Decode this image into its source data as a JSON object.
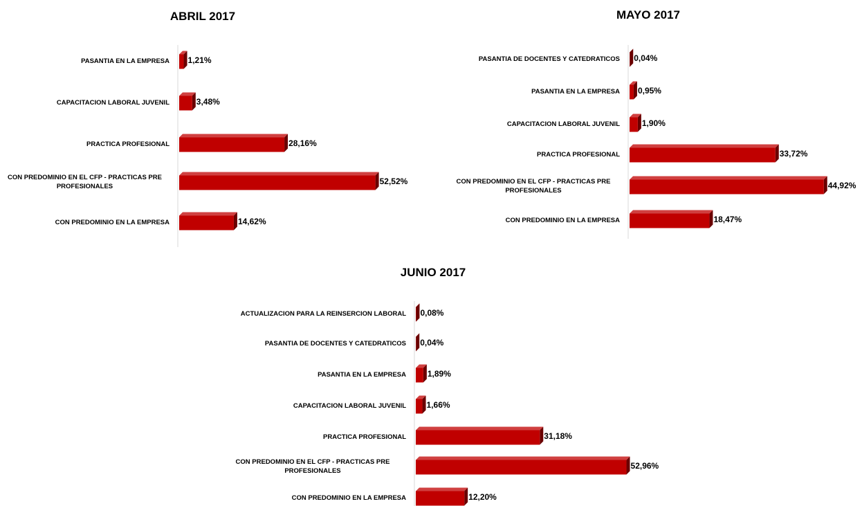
{
  "chart_data": [
    {
      "type": "bar",
      "title": "ABRIL 2017",
      "color": "#c00000",
      "categories": [
        "PASANTIA EN LA EMPRESA",
        "CAPACITACION LABORAL JUVENIL",
        "PRACTICA PROFESIONAL",
        "CON PREDOMINIO EN EL CFP - PRACTICAS PRE PROFESIONALES",
        "CON PREDOMINIO EN LA EMPRESA"
      ],
      "values": [
        1.21,
        3.48,
        28.16,
        52.52,
        14.62
      ],
      "value_labels": [
        "1,21%",
        "3,48%",
        "28,16%",
        "52,52%",
        "14,62%"
      ]
    },
    {
      "type": "bar",
      "title": "MAYO 2017",
      "color": "#c00000",
      "categories": [
        "PASANTIA DE DOCENTES Y CATEDRATICOS",
        "PASANTIA EN LA EMPRESA",
        "CAPACITACION LABORAL JUVENIL",
        "PRACTICA PROFESIONAL",
        "CON PREDOMINIO EN EL CFP - PRACTICAS PRE PROFESIONALES",
        "CON PREDOMINIO EN LA EMPRESA"
      ],
      "values": [
        0.04,
        0.95,
        1.9,
        33.72,
        44.92,
        18.47
      ],
      "value_labels": [
        "0,04%",
        "0,95%",
        "1,90%",
        "33,72%",
        "44,92%",
        "18,47%"
      ]
    },
    {
      "type": "bar",
      "title": "JUNIO  2017",
      "color": "#c00000",
      "categories": [
        "ACTUALIZACION PARA LA REINSERCION LABORAL",
        "PASANTIA DE DOCENTES Y CATEDRATICOS",
        "PASANTIA EN LA EMPRESA",
        "CAPACITACION LABORAL JUVENIL",
        "PRACTICA PROFESIONAL",
        "CON PREDOMINIO EN EL CFP - PRACTICAS PRE PROFESIONALES",
        "CON PREDOMINIO EN LA EMPRESA"
      ],
      "values": [
        0.08,
        0.04,
        1.89,
        1.66,
        31.18,
        52.96,
        12.2
      ],
      "value_labels": [
        "0,08%",
        "0,04%",
        "1,89%",
        "1,66%",
        "31,18%",
        "52,96%",
        "12,20%"
      ]
    }
  ]
}
